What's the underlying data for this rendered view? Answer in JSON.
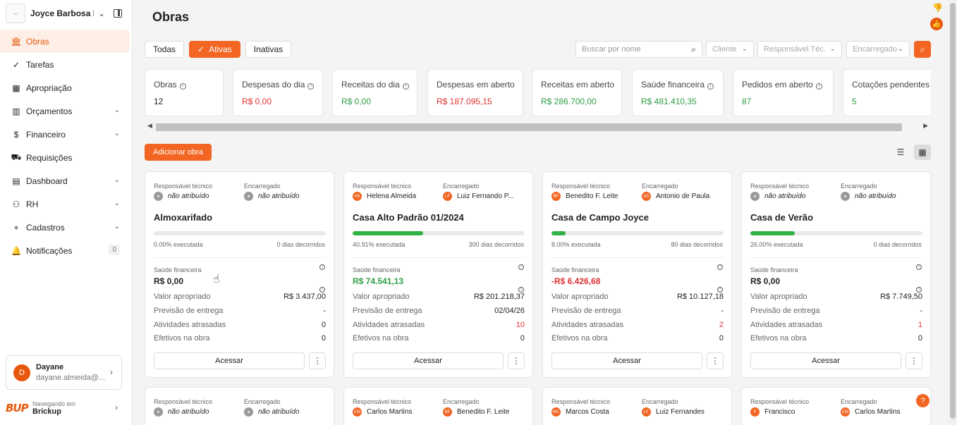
{
  "org": {
    "name": "Joyce Barbosa E..."
  },
  "nav": [
    {
      "label": "Obras",
      "icon": "bank-icon",
      "glyph": "🏛",
      "active": true
    },
    {
      "label": "Tarefas",
      "icon": "check-circle-icon",
      "glyph": "✓"
    },
    {
      "label": "Apropriação",
      "icon": "grid-icon",
      "glyph": "▦"
    },
    {
      "label": "Orçamentos",
      "icon": "barcode-icon",
      "glyph": "▥",
      "chevron": true
    },
    {
      "label": "Financeiro",
      "icon": "dollar-icon",
      "glyph": "$",
      "chevron": true
    },
    {
      "label": "Requisições",
      "icon": "cart-icon",
      "glyph": "⛟"
    },
    {
      "label": "Dashboard",
      "icon": "chart-icon",
      "glyph": "▤",
      "chevron": true
    },
    {
      "label": "RH",
      "icon": "user-icon",
      "glyph": "⚇",
      "chevron": true
    },
    {
      "label": "Cadastros",
      "icon": "plus-icon",
      "glyph": "+",
      "chevron": true
    },
    {
      "label": "Notificações",
      "icon": "bell-icon",
      "glyph": "🔔",
      "badge": "0"
    }
  ],
  "user": {
    "initial": "D",
    "name": "Dayane",
    "email": "dayane.almeida@..."
  },
  "brand": {
    "logo": "BUP",
    "caption": "Navegando em",
    "name": "Brickup"
  },
  "page": {
    "title": "Obras"
  },
  "filters": {
    "all": "Todas",
    "active": "Ativas",
    "inactive": "Inativas"
  },
  "search": {
    "placeholder": "Buscar por nome",
    "client": "Cliente",
    "tech": "Responsável Téc.",
    "manager": "Encarregado"
  },
  "kpis": [
    {
      "label": "Obras",
      "value": "12",
      "color": "#222222",
      "info": true
    },
    {
      "label": "Despesas do dia",
      "value": "R$ 0,00",
      "color": "#e03131",
      "info": true
    },
    {
      "label": "Receitas do dia",
      "value": "R$ 0,00",
      "color": "#2f9e44",
      "info": true
    },
    {
      "label": "Despesas em aberto",
      "value": "R$ 187.095,15",
      "color": "#e03131",
      "info": false
    },
    {
      "label": "Receitas em aberto",
      "value": "R$ 286.700,00",
      "color": "#2f9e44",
      "info": false
    },
    {
      "label": "Saúde financeira",
      "value": "R$ 481.410,35",
      "color": "#2f9e44",
      "info": true
    },
    {
      "label": "Pedidos em aberto",
      "value": "87",
      "color": "#2f9e44",
      "info": true
    },
    {
      "label": "Cotações pendentes",
      "value": "5",
      "color": "#2f9e44",
      "info": false
    }
  ],
  "actions": {
    "add": "Adicionar obra"
  },
  "labels": {
    "tech": "Responsável técnico",
    "manager": "Encarregado",
    "health": "Saúde financeira",
    "appropriated": "Valor apropriado",
    "delivery": "Previsão de entrega",
    "delayed": "Atividades atrasadas",
    "staff": "Efetivos na obra",
    "access": "Acessar"
  },
  "cards": [
    {
      "tech": {
        "name": "não atribuído",
        "initials": "",
        "na": true
      },
      "manager": {
        "name": "não atribuído",
        "initials": "",
        "na": true
      },
      "title": "Almoxarifado",
      "progress": 0,
      "exec": "0.00% executada",
      "days": "0 dias decorridos",
      "health": "R$ 0,00",
      "health_color": "#222222",
      "appropriated": "R$ 3.437,00",
      "delivery": "-",
      "delayed": "0",
      "delayed_red": false,
      "staff": "0"
    },
    {
      "tech": {
        "name": "Helena Almeida",
        "initials": "HA",
        "na": false
      },
      "manager": {
        "name": "Luiz Fernando P...",
        "initials": "LF",
        "na": false
      },
      "title": "Casa Alto Padrão 01/2024",
      "progress": 40.91,
      "exec": "40.91% executada",
      "days": "300 dias decorridos",
      "health": "R$ 74.541,13",
      "health_color": "#2f9e44",
      "appropriated": "R$ 201.218,37",
      "delivery": "02/04/26",
      "delayed": "10",
      "delayed_red": true,
      "staff": "0"
    },
    {
      "tech": {
        "name": "Benedito F. Leite",
        "initials": "BF",
        "na": false
      },
      "manager": {
        "name": "Antonio de Paula",
        "initials": "AD",
        "na": false
      },
      "title": "Casa de Campo Joyce",
      "progress": 8,
      "exec": "8.00% executada",
      "days": "80 dias decorridos",
      "health": "-R$ 6.426,68",
      "health_color": "#e03131",
      "appropriated": "R$ 10.127,18",
      "delivery": "-",
      "delayed": "2",
      "delayed_red": true,
      "staff": "0"
    },
    {
      "tech": {
        "name": "não atribuído",
        "initials": "",
        "na": true
      },
      "manager": {
        "name": "não atribuído",
        "initials": "",
        "na": true
      },
      "title": "Casa de Verão",
      "progress": 26,
      "exec": "26.00% executada",
      "days": "0 dias decorridos",
      "health": "R$ 0,00",
      "health_color": "#222222",
      "appropriated": "R$ 7.749,50",
      "delivery": "-",
      "delayed": "1",
      "delayed_red": true,
      "staff": "0"
    }
  ],
  "cards2": [
    {
      "tech": {
        "name": "não atribuído",
        "initials": "",
        "na": true
      },
      "manager": {
        "name": "não atribuído",
        "initials": "",
        "na": true
      }
    },
    {
      "tech": {
        "name": "Carlos Martins",
        "initials": "CM",
        "na": false
      },
      "manager": {
        "name": "Benedito F. Leite",
        "initials": "BF",
        "na": false
      }
    },
    {
      "tech": {
        "name": "Marcos Costa",
        "initials": "MC",
        "na": false
      },
      "manager": {
        "name": "Luiz Fernandes",
        "initials": "LF",
        "na": false
      }
    },
    {
      "tech": {
        "name": "Francisco",
        "initials": "F",
        "na": false
      },
      "manager": {
        "name": "Carlos Martins",
        "initials": "CM",
        "na": false
      }
    }
  ]
}
